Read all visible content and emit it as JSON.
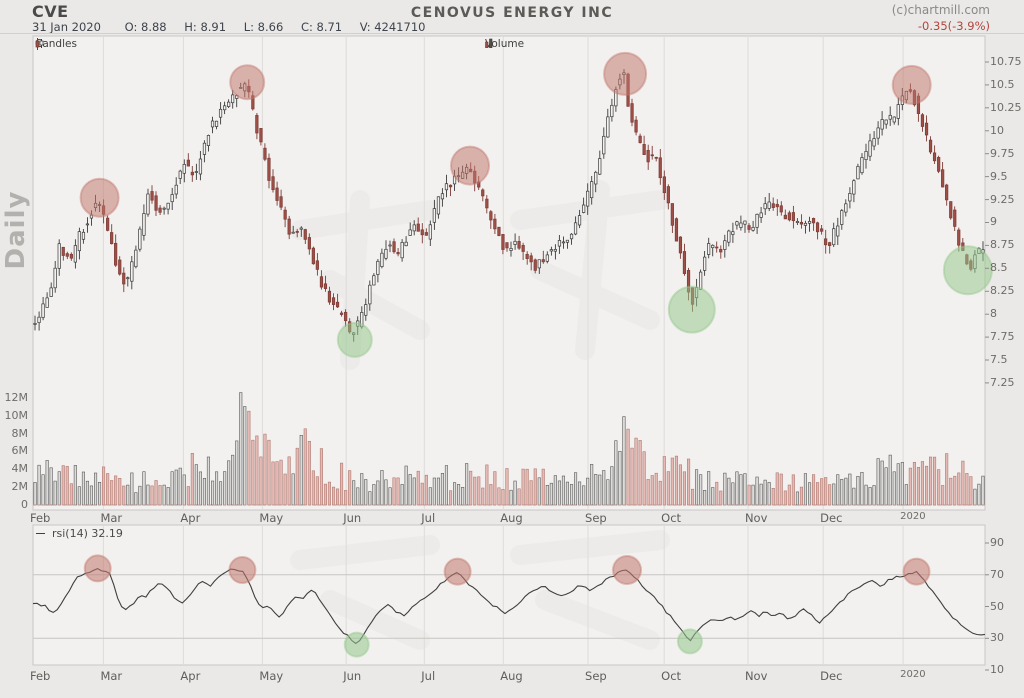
{
  "header": {
    "symbol": "CVE",
    "date": "31 Jan 2020",
    "fields": [
      {
        "label": "O:",
        "value": "8.88"
      },
      {
        "label": "H:",
        "value": "8.91"
      },
      {
        "label": "L:",
        "value": "8.66"
      },
      {
        "label": "C:",
        "value": "8.71"
      },
      {
        "label": "V:",
        "value": "4241710"
      }
    ],
    "title": "CENOVUS ENERGY INC",
    "copyright": "(c)chartmill.com",
    "change": "-0.35(-3.9%)"
  },
  "sidebar": {
    "timeframe": "Daily"
  },
  "legends": {
    "candles": "Candles",
    "volume": "Volume",
    "rsi": "rsi(14) 32.19"
  },
  "colors": {
    "up_fill": "#f3f2f0",
    "up_stroke": "#3a3a3a",
    "down_fill": "#9e4f47",
    "down_stroke": "#7c3b34",
    "vol_up_fill": "#dcdbd9",
    "vol_up_stroke": "#5a5a5a",
    "vol_down_fill": "#e5bab4",
    "vol_down_stroke": "#b07a72",
    "circle_red": "#c1776d",
    "circle_green": "#94c78c",
    "rsi_line": "#3f3f3f",
    "change_red": "#b2463e",
    "grid": "#dedcd9",
    "panel_bg": "#f2f1ef",
    "panel_border": "#c9c7c4"
  },
  "chart_data": {
    "type": "candlestick",
    "symbol": "CVE",
    "title": "CENOVUS ENERGY INC",
    "timeframe": "Daily",
    "last_bar": {
      "date": "31 Jan 2020",
      "open": 8.88,
      "high": 8.91,
      "low": 8.66,
      "close": 8.71,
      "volume": 4241710,
      "change": -0.35,
      "change_pct": -3.9
    },
    "num_candles": 236,
    "price_axis": {
      "min": 7.25,
      "max": 10.75,
      "step": 0.25,
      "labels": [
        "10.75",
        "10.5",
        "10.25",
        "10",
        "9.75",
        "9.5",
        "9.25",
        "9",
        "8.75",
        "8.5",
        "8.25",
        "8",
        "7.75",
        "7.5",
        "7.25"
      ]
    },
    "volume_axis": {
      "labels": [
        "12M",
        "10M",
        "8M",
        "6M",
        "4M",
        "2M",
        "0"
      ],
      "values": [
        12,
        10,
        8,
        6,
        4,
        2,
        0
      ]
    },
    "rsi_axis": {
      "labels": [
        "90",
        "70",
        "50",
        "30",
        "10"
      ],
      "values": [
        90,
        70,
        50,
        30,
        10
      ],
      "levels": [
        70,
        30
      ]
    },
    "months": [
      {
        "label": "Feb",
        "f": 0.0
      },
      {
        "label": "Mar",
        "f": 0.074
      },
      {
        "label": "Apr",
        "f": 0.158
      },
      {
        "label": "May",
        "f": 0.241
      },
      {
        "label": "Jun",
        "f": 0.329
      },
      {
        "label": "Jul",
        "f": 0.411
      },
      {
        "label": "Aug",
        "f": 0.494
      },
      {
        "label": "Sep",
        "f": 0.583
      },
      {
        "label": "Oct",
        "f": 0.663
      },
      {
        "label": "Nov",
        "f": 0.751
      },
      {
        "label": "Dec",
        "f": 0.83
      },
      {
        "label": "2020",
        "f": 0.914
      }
    ],
    "price_path": [
      [
        0.003,
        7.88
      ],
      [
        0.018,
        8.18
      ],
      [
        0.03,
        8.75
      ],
      [
        0.041,
        8.57
      ],
      [
        0.051,
        8.86
      ],
      [
        0.062,
        9.08
      ],
      [
        0.07,
        9.25
      ],
      [
        0.079,
        8.97
      ],
      [
        0.089,
        8.57
      ],
      [
        0.099,
        8.32
      ],
      [
        0.11,
        8.68
      ],
      [
        0.123,
        9.35
      ],
      [
        0.133,
        9.11
      ],
      [
        0.146,
        9.25
      ],
      [
        0.16,
        9.66
      ],
      [
        0.172,
        9.48
      ],
      [
        0.186,
        9.99
      ],
      [
        0.199,
        10.21
      ],
      [
        0.212,
        10.39
      ],
      [
        0.225,
        10.53
      ],
      [
        0.233,
        10.21
      ],
      [
        0.242,
        9.81
      ],
      [
        0.251,
        9.44
      ],
      [
        0.263,
        9.11
      ],
      [
        0.273,
        8.83
      ],
      [
        0.283,
        8.94
      ],
      [
        0.294,
        8.68
      ],
      [
        0.305,
        8.32
      ],
      [
        0.315,
        8.13
      ],
      [
        0.326,
        8.02
      ],
      [
        0.335,
        7.77
      ],
      [
        0.344,
        7.91
      ],
      [
        0.354,
        8.21
      ],
      [
        0.365,
        8.57
      ],
      [
        0.375,
        8.79
      ],
      [
        0.383,
        8.61
      ],
      [
        0.394,
        8.83
      ],
      [
        0.404,
        9.0
      ],
      [
        0.415,
        8.81
      ],
      [
        0.425,
        9.19
      ],
      [
        0.436,
        9.37
      ],
      [
        0.446,
        9.48
      ],
      [
        0.457,
        9.6
      ],
      [
        0.467,
        9.44
      ],
      [
        0.478,
        9.15
      ],
      [
        0.488,
        8.89
      ],
      [
        0.499,
        8.7
      ],
      [
        0.509,
        8.79
      ],
      [
        0.52,
        8.61
      ],
      [
        0.53,
        8.5
      ],
      [
        0.541,
        8.63
      ],
      [
        0.551,
        8.74
      ],
      [
        0.562,
        8.81
      ],
      [
        0.572,
        9.0
      ],
      [
        0.583,
        9.25
      ],
      [
        0.593,
        9.55
      ],
      [
        0.604,
        10.03
      ],
      [
        0.614,
        10.45
      ],
      [
        0.622,
        10.69
      ],
      [
        0.63,
        10.1
      ],
      [
        0.639,
        9.88
      ],
      [
        0.648,
        9.7
      ],
      [
        0.655,
        9.79
      ],
      [
        0.664,
        9.41
      ],
      [
        0.671,
        9.11
      ],
      [
        0.681,
        8.7
      ],
      [
        0.688,
        8.43
      ],
      [
        0.694,
        8.1
      ],
      [
        0.703,
        8.46
      ],
      [
        0.713,
        8.79
      ],
      [
        0.724,
        8.68
      ],
      [
        0.734,
        8.9
      ],
      [
        0.745,
        9.0
      ],
      [
        0.755,
        8.94
      ],
      [
        0.766,
        9.11
      ],
      [
        0.776,
        9.22
      ],
      [
        0.787,
        9.11
      ],
      [
        0.797,
        9.06
      ],
      [
        0.808,
        8.95
      ],
      [
        0.818,
        9.0
      ],
      [
        0.829,
        8.9
      ],
      [
        0.837,
        8.73
      ],
      [
        0.846,
        8.95
      ],
      [
        0.856,
        9.22
      ],
      [
        0.867,
        9.55
      ],
      [
        0.877,
        9.77
      ],
      [
        0.888,
        9.99
      ],
      [
        0.898,
        10.15
      ],
      [
        0.906,
        10.1
      ],
      [
        0.916,
        10.37
      ],
      [
        0.923,
        10.48
      ],
      [
        0.932,
        10.21
      ],
      [
        0.942,
        9.88
      ],
      [
        0.953,
        9.55
      ],
      [
        0.963,
        9.22
      ],
      [
        0.971,
        8.89
      ],
      [
        0.98,
        8.61
      ],
      [
        0.986,
        8.46
      ],
      [
        0.992,
        8.68
      ],
      [
        1.0,
        8.71
      ]
    ],
    "volume_profile": [
      [
        0.0,
        3.2
      ],
      [
        0.005,
        4.5
      ],
      [
        0.02,
        5.5
      ],
      [
        0.04,
        3.0
      ],
      [
        0.06,
        3.5
      ],
      [
        0.09,
        2.6
      ],
      [
        0.12,
        2.5
      ],
      [
        0.15,
        2.9
      ],
      [
        0.18,
        4.6
      ],
      [
        0.2,
        3.6
      ],
      [
        0.212,
        6.5
      ],
      [
        0.218,
        11.8
      ],
      [
        0.224,
        10.5
      ],
      [
        0.231,
        8.3
      ],
      [
        0.245,
        5.2
      ],
      [
        0.27,
        4.0
      ],
      [
        0.291,
        6.8
      ],
      [
        0.31,
        3.4
      ],
      [
        0.35,
        2.7
      ],
      [
        0.4,
        3.2
      ],
      [
        0.44,
        3.0
      ],
      [
        0.48,
        3.4
      ],
      [
        0.52,
        2.7
      ],
      [
        0.56,
        2.9
      ],
      [
        0.6,
        3.3
      ],
      [
        0.617,
        6.0
      ],
      [
        0.622,
        12.4
      ],
      [
        0.628,
        6.8
      ],
      [
        0.65,
        3.6
      ],
      [
        0.68,
        3.8
      ],
      [
        0.7,
        3.0
      ],
      [
        0.73,
        2.6
      ],
      [
        0.76,
        3.0
      ],
      [
        0.79,
        2.5
      ],
      [
        0.82,
        2.8
      ],
      [
        0.85,
        3.0
      ],
      [
        0.88,
        3.4
      ],
      [
        0.9,
        3.8
      ],
      [
        0.92,
        3.2
      ],
      [
        0.94,
        3.6
      ],
      [
        0.96,
        4.2
      ],
      [
        0.98,
        3.4
      ],
      [
        1.0,
        2.8
      ]
    ],
    "rsi_path": [
      [
        0.003,
        52
      ],
      [
        0.013,
        50
      ],
      [
        0.023,
        45
      ],
      [
        0.034,
        56
      ],
      [
        0.047,
        69
      ],
      [
        0.068,
        74
      ],
      [
        0.081,
        71
      ],
      [
        0.086,
        62
      ],
      [
        0.091,
        51
      ],
      [
        0.099,
        48
      ],
      [
        0.105,
        52
      ],
      [
        0.112,
        57
      ],
      [
        0.118,
        55
      ],
      [
        0.123,
        60
      ],
      [
        0.13,
        64
      ],
      [
        0.137,
        65
      ],
      [
        0.144,
        59
      ],
      [
        0.151,
        54
      ],
      [
        0.158,
        52
      ],
      [
        0.165,
        57
      ],
      [
        0.172,
        63
      ],
      [
        0.179,
        66
      ],
      [
        0.186,
        63
      ],
      [
        0.193,
        67
      ],
      [
        0.2,
        70
      ],
      [
        0.207,
        73
      ],
      [
        0.22,
        73
      ],
      [
        0.226,
        67
      ],
      [
        0.231,
        58
      ],
      [
        0.236,
        52
      ],
      [
        0.242,
        49
      ],
      [
        0.247,
        51
      ],
      [
        0.252,
        47
      ],
      [
        0.257,
        43
      ],
      [
        0.263,
        46
      ],
      [
        0.268,
        50
      ],
      [
        0.273,
        54
      ],
      [
        0.278,
        57
      ],
      [
        0.284,
        55
      ],
      [
        0.289,
        58
      ],
      [
        0.294,
        62
      ],
      [
        0.299,
        57
      ],
      [
        0.305,
        51
      ],
      [
        0.31,
        47
      ],
      [
        0.315,
        41
      ],
      [
        0.32,
        37
      ],
      [
        0.326,
        34
      ],
      [
        0.331,
        31
      ],
      [
        0.34,
        26
      ],
      [
        0.348,
        33
      ],
      [
        0.356,
        40
      ],
      [
        0.365,
        48
      ],
      [
        0.373,
        52
      ],
      [
        0.381,
        47
      ],
      [
        0.39,
        44
      ],
      [
        0.4,
        50
      ],
      [
        0.41,
        55
      ],
      [
        0.42,
        60
      ],
      [
        0.43,
        65
      ],
      [
        0.438,
        70
      ],
      [
        0.446,
        72
      ],
      [
        0.455,
        66
      ],
      [
        0.465,
        60
      ],
      [
        0.475,
        55
      ],
      [
        0.485,
        50
      ],
      [
        0.495,
        46
      ],
      [
        0.505,
        50
      ],
      [
        0.515,
        55
      ],
      [
        0.525,
        60
      ],
      [
        0.535,
        63
      ],
      [
        0.545,
        60
      ],
      [
        0.555,
        56
      ],
      [
        0.565,
        60
      ],
      [
        0.575,
        63
      ],
      [
        0.585,
        60
      ],
      [
        0.595,
        64
      ],
      [
        0.605,
        68
      ],
      [
        0.615,
        71
      ],
      [
        0.624,
        73
      ],
      [
        0.633,
        68
      ],
      [
        0.642,
        62
      ],
      [
        0.65,
        57
      ],
      [
        0.658,
        52
      ],
      [
        0.666,
        46
      ],
      [
        0.675,
        40
      ],
      [
        0.683,
        34
      ],
      [
        0.69,
        28
      ],
      [
        0.698,
        34
      ],
      [
        0.706,
        40
      ],
      [
        0.714,
        43
      ],
      [
        0.722,
        40
      ],
      [
        0.73,
        44
      ],
      [
        0.738,
        41
      ],
      [
        0.746,
        44
      ],
      [
        0.754,
        47
      ],
      [
        0.762,
        44
      ],
      [
        0.77,
        47
      ],
      [
        0.778,
        43
      ],
      [
        0.786,
        46
      ],
      [
        0.794,
        42
      ],
      [
        0.802,
        45
      ],
      [
        0.81,
        48
      ],
      [
        0.818,
        44
      ],
      [
        0.826,
        40
      ],
      [
        0.834,
        44
      ],
      [
        0.842,
        50
      ],
      [
        0.852,
        55
      ],
      [
        0.862,
        60
      ],
      [
        0.872,
        64
      ],
      [
        0.882,
        67
      ],
      [
        0.89,
        63
      ],
      [
        0.898,
        66
      ],
      [
        0.906,
        69
      ],
      [
        0.92,
        70
      ],
      [
        0.928,
        72
      ],
      [
        0.936,
        66
      ],
      [
        0.944,
        60
      ],
      [
        0.952,
        54
      ],
      [
        0.96,
        48
      ],
      [
        0.968,
        42
      ],
      [
        0.976,
        37
      ],
      [
        0.985,
        34
      ],
      [
        0.995,
        32
      ]
    ],
    "annotations": {
      "price": [
        {
          "f": 0.07,
          "value": 9.27,
          "r": 19,
          "color": "red"
        },
        {
          "f": 0.225,
          "value": 10.53,
          "r": 17,
          "color": "red"
        },
        {
          "f": 0.338,
          "value": 7.72,
          "r": 17,
          "color": "green"
        },
        {
          "f": 0.459,
          "value": 9.62,
          "r": 19,
          "color": "red"
        },
        {
          "f": 0.622,
          "value": 10.62,
          "r": 21,
          "color": "red"
        },
        {
          "f": 0.692,
          "value": 8.05,
          "r": 23,
          "color": "green"
        },
        {
          "f": 0.923,
          "value": 10.5,
          "r": 19,
          "color": "red"
        },
        {
          "f": 0.982,
          "value": 8.48,
          "r": 24,
          "color": "green"
        }
      ],
      "rsi": [
        {
          "f": 0.068,
          "value": 74,
          "r": 13,
          "color": "red"
        },
        {
          "f": 0.22,
          "value": 73,
          "r": 13,
          "color": "red"
        },
        {
          "f": 0.34,
          "value": 26,
          "r": 12,
          "color": "green"
        },
        {
          "f": 0.446,
          "value": 72,
          "r": 13,
          "color": "red"
        },
        {
          "f": 0.624,
          "value": 73,
          "r": 14,
          "color": "red"
        },
        {
          "f": 0.69,
          "value": 28,
          "r": 12,
          "color": "green"
        },
        {
          "f": 0.928,
          "value": 72,
          "r": 13,
          "color": "red"
        }
      ]
    }
  }
}
